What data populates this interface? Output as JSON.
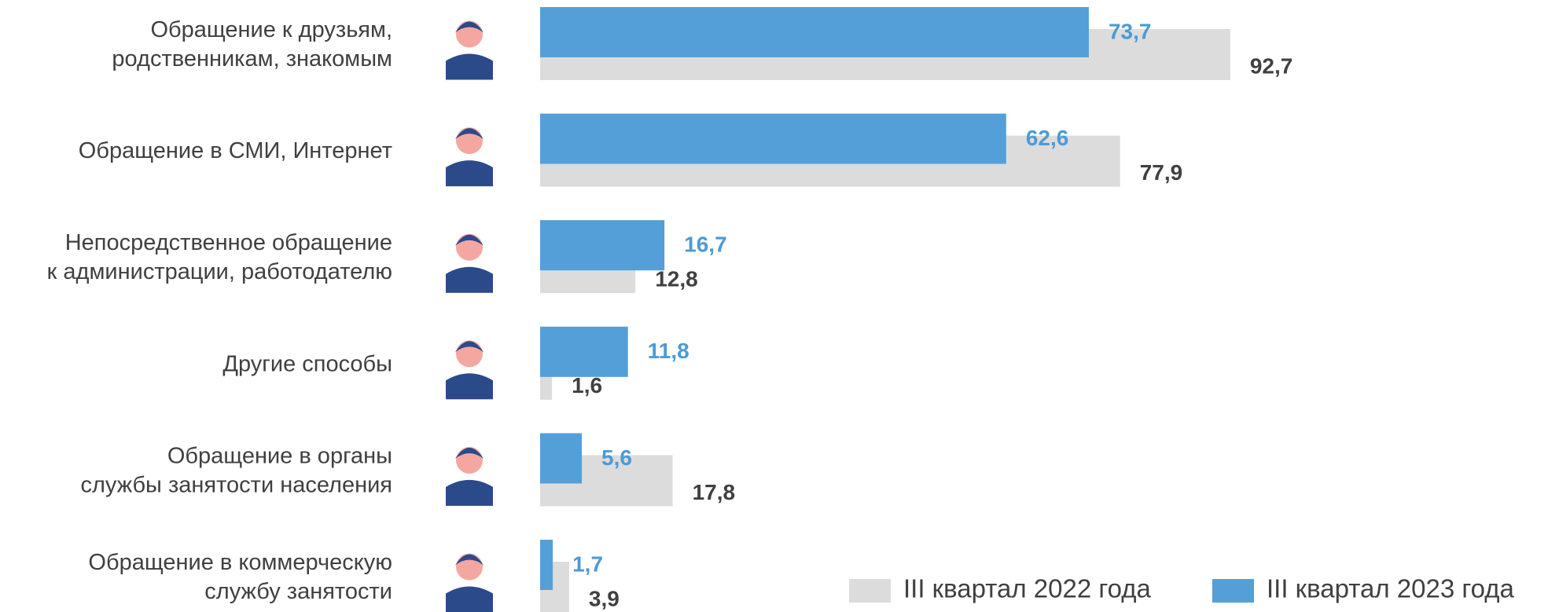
{
  "chart_data": {
    "type": "bar",
    "orientation": "horizontal",
    "categories": [
      [
        "Обращение к друзьям,",
        "родственникам, знакомым"
      ],
      [
        "Обращение в СМИ, Интернет"
      ],
      [
        "Непосредственное обращение",
        "к администрации, работодателю"
      ],
      [
        "Другие способы"
      ],
      [
        "Обращение в органы",
        "службы занятости населения"
      ],
      [
        "Обращение в коммерческую",
        "службу занятости"
      ]
    ],
    "series": [
      {
        "name": "III квартал 2022 года",
        "color": "#dcdcdc",
        "label_color": "#404040",
        "values": [
          92.7,
          77.9,
          12.8,
          1.6,
          17.8,
          3.9
        ],
        "value_labels": [
          "92,7",
          "77,9",
          "12,8",
          "1,6",
          "17,8",
          "3,9"
        ]
      },
      {
        "name": "III квартал 2023 года",
        "color": "#559fd8",
        "label_color": "#4d9ad5",
        "values": [
          73.7,
          62.6,
          16.7,
          11.8,
          5.6,
          1.7
        ],
        "value_labels": [
          "73,7",
          "62,6",
          "16,7",
          "11,8",
          "5,6",
          "1,7"
        ]
      }
    ]
  }
}
